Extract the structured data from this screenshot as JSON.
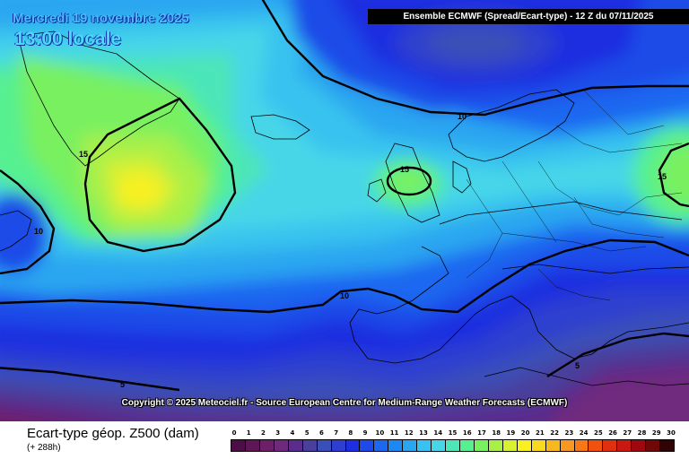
{
  "map": {
    "date_label": "Mercredi 19 novembre 2025",
    "time_label": "13:00 locale",
    "header": "Ensemble ECMWF  (Spread/Ecart-type) - 12 Z du 07/11/2025",
    "copyright": "Copyright © 2025 Meteociel.fr - Source European Centre for Medium-Range Weather Forecasts (ECMWF)",
    "contour_labels": [
      "15",
      "10",
      "15",
      "15",
      "10",
      "10",
      "5",
      "5"
    ]
  },
  "footer": {
    "parameter_title": "Ecart-type géop. Z500 (dam)",
    "lead_time": "(+ 288h)"
  },
  "legend": {
    "ticks": [
      "0",
      "1",
      "2",
      "3",
      "4",
      "5",
      "6",
      "7",
      "8",
      "9",
      "10",
      "11",
      "12",
      "13",
      "14",
      "15",
      "16",
      "17",
      "18",
      "19",
      "20",
      "21",
      "22",
      "23",
      "24",
      "25",
      "26",
      "27",
      "28",
      "29",
      "30"
    ],
    "colors": [
      "#4b0f45",
      "#5e1657",
      "#6e1f69",
      "#6f2a7e",
      "#5a2c8c",
      "#4a3f9c",
      "#3a4fb8",
      "#2e3fcf",
      "#1d2fe0",
      "#1e4be8",
      "#1e68f0",
      "#1e88f2",
      "#2aa6f0",
      "#38c2ef",
      "#47d6e8",
      "#4ce6b8",
      "#56f090",
      "#78f060",
      "#a8f048",
      "#d8f030",
      "#f8f020",
      "#f8d820",
      "#f8b820",
      "#f89820",
      "#f87818",
      "#f05010",
      "#e03010",
      "#c81810",
      "#a00810",
      "#700808",
      "#300404"
    ]
  }
}
